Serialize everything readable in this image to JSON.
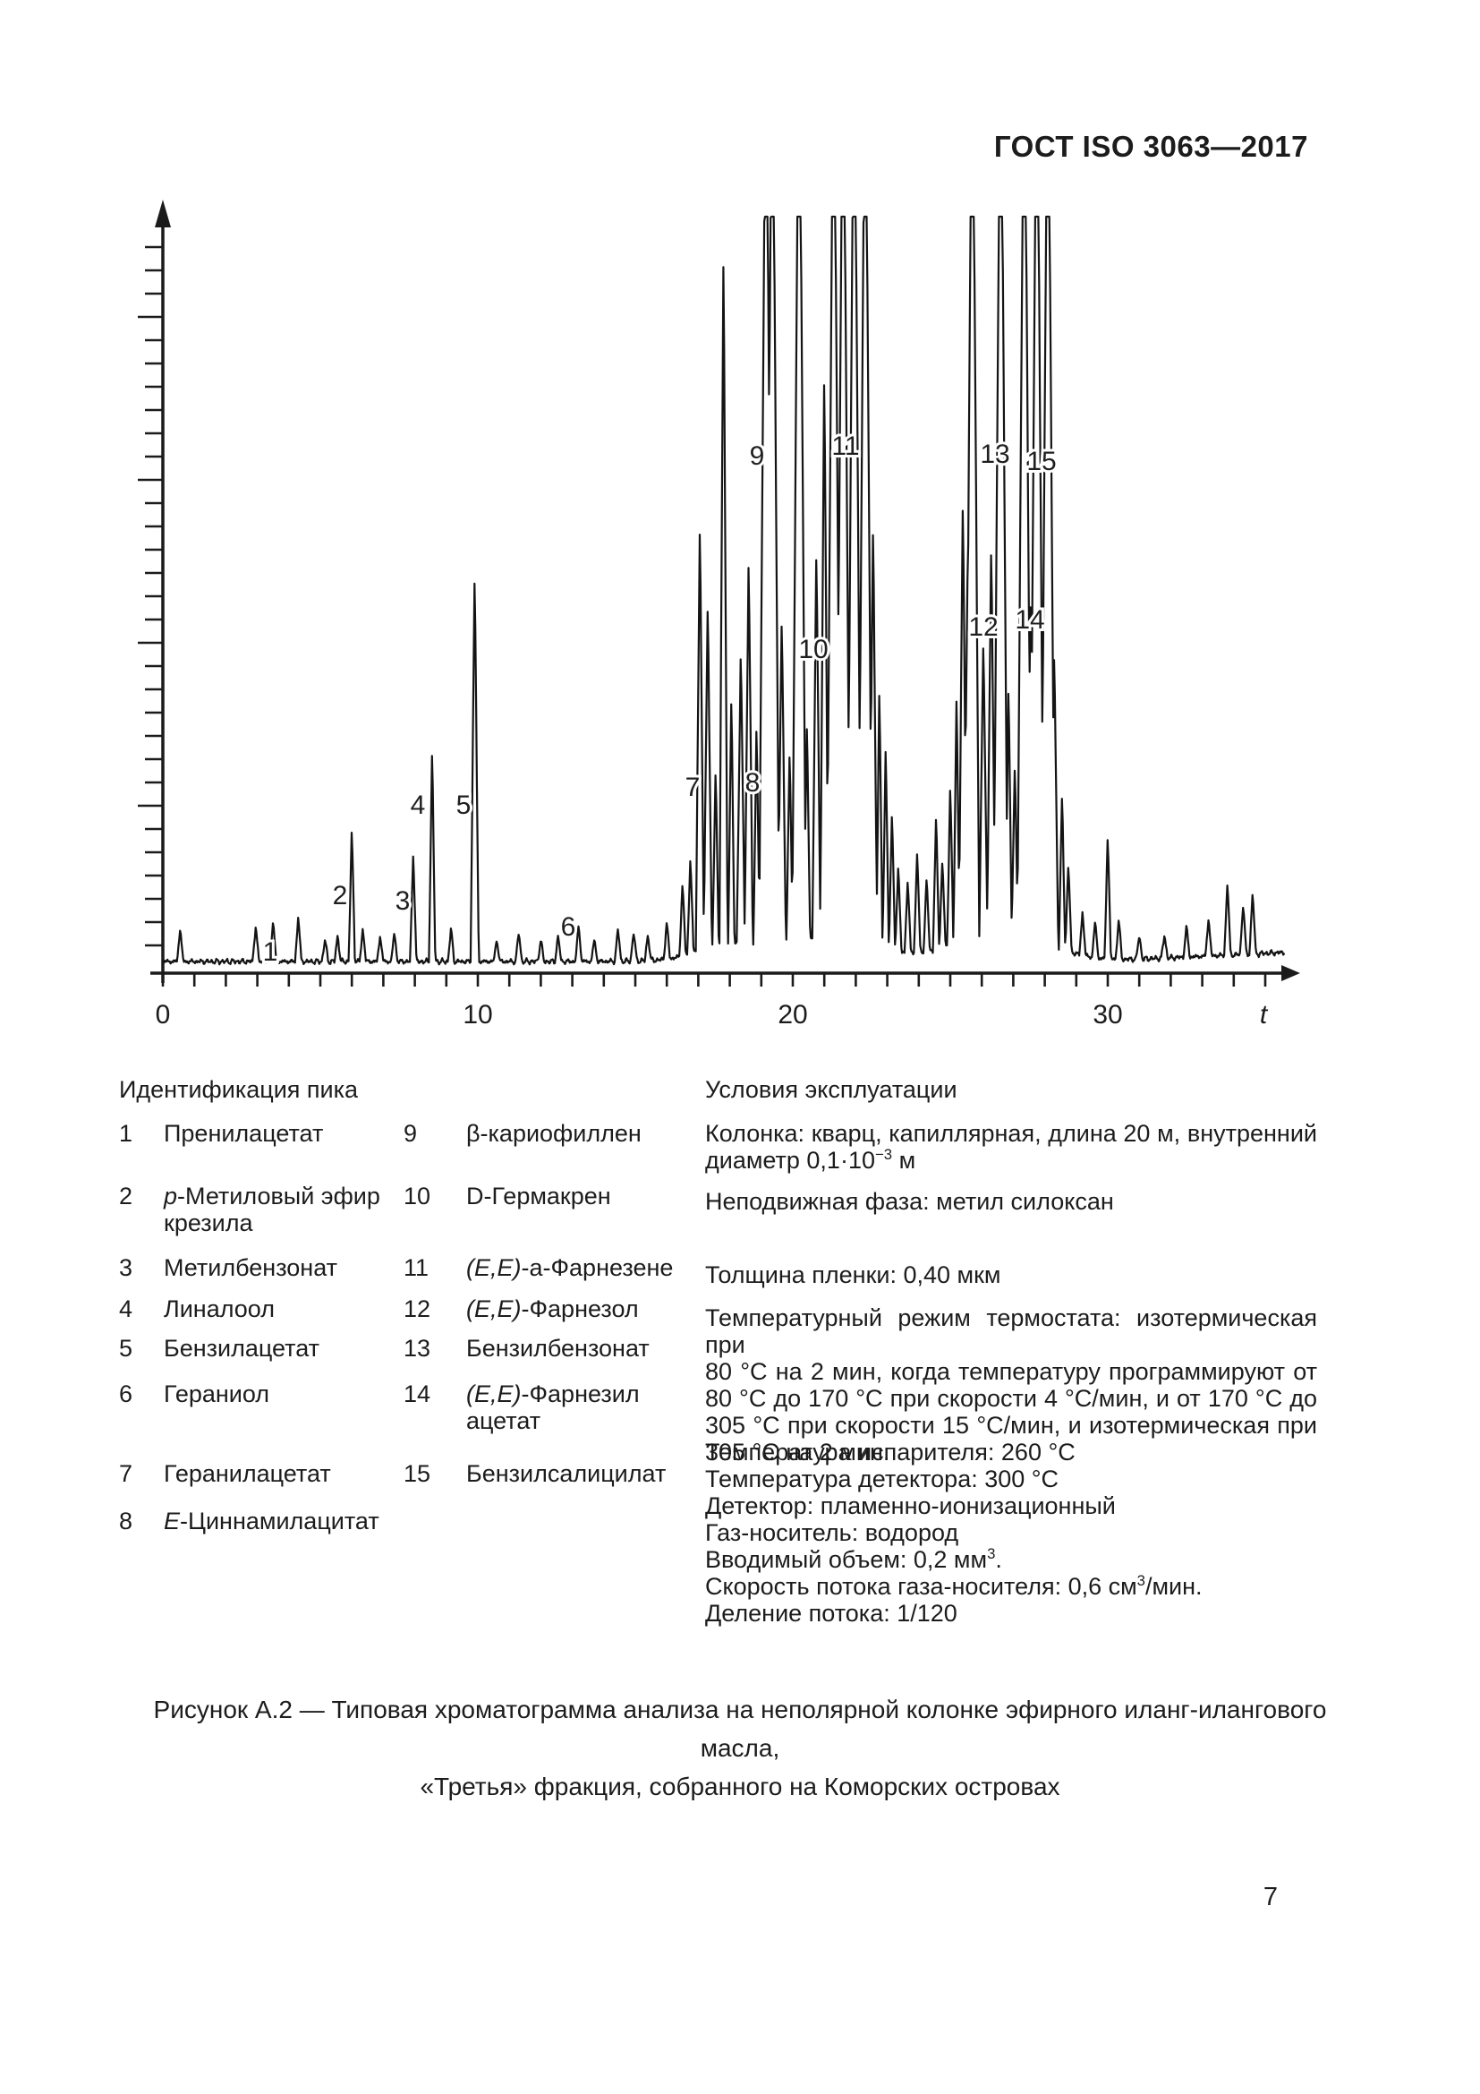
{
  "page": {
    "header": "ГОСТ ISO 3063—2017",
    "page_number": "7"
  },
  "chart_data": {
    "type": "line",
    "kind": "gas-chromatogram",
    "title": "",
    "xlabel": "t",
    "ylabel": "",
    "x_ticks": [
      0,
      10,
      20,
      30
    ],
    "x_minor_tick_step": 1,
    "x_range": [
      0,
      35.8
    ],
    "y_axis_ticks_count": 31,
    "grid": "off",
    "legend": "none",
    "trace_color": "#161616",
    "clipped_note": "peaks 9,11,12,13,14,15 and several unlabeled peaks saturate at plot top",
    "peaks": [
      {
        "t": 0.55,
        "h": 0.045
      },
      {
        "t": 2.95,
        "h": 0.05
      },
      {
        "t": 3.5,
        "h": 0.055,
        "label": "1"
      },
      {
        "t": 4.3,
        "h": 0.062
      },
      {
        "t": 5.15,
        "h": 0.03
      },
      {
        "t": 5.55,
        "h": 0.035
      },
      {
        "t": 6.0,
        "h": 0.18,
        "label": "2"
      },
      {
        "t": 6.35,
        "h": 0.045
      },
      {
        "t": 6.9,
        "h": 0.035
      },
      {
        "t": 7.35,
        "h": 0.04
      },
      {
        "t": 7.95,
        "h": 0.15,
        "label": "3"
      },
      {
        "t": 8.55,
        "h": 0.29,
        "label": "4"
      },
      {
        "t": 9.15,
        "h": 0.045
      },
      {
        "t": 9.9,
        "h": 0.53,
        "label": "5"
      },
      {
        "t": 10.6,
        "h": 0.03
      },
      {
        "t": 11.3,
        "h": 0.04
      },
      {
        "t": 12.0,
        "h": 0.03
      },
      {
        "t": 12.55,
        "h": 0.035
      },
      {
        "t": 13.2,
        "h": 0.05,
        "label": "6"
      },
      {
        "t": 13.7,
        "h": 0.03
      },
      {
        "t": 14.45,
        "h": 0.045
      },
      {
        "t": 14.95,
        "h": 0.04
      },
      {
        "t": 15.4,
        "h": 0.035
      },
      {
        "t": 16.0,
        "h": 0.05
      },
      {
        "t": 16.5,
        "h": 0.1
      },
      {
        "t": 16.75,
        "h": 0.13
      },
      {
        "t": 17.05,
        "h": 0.58,
        "label": "7"
      },
      {
        "t": 17.3,
        "h": 0.47
      },
      {
        "t": 17.55,
        "h": 0.24
      },
      {
        "t": 17.8,
        "h": 0.95
      },
      {
        "t": 18.05,
        "h": 0.34
      },
      {
        "t": 18.35,
        "h": 0.4,
        "label": "8"
      },
      {
        "t": 18.6,
        "h": 0.53
      },
      {
        "t": 18.85,
        "h": 0.3
      },
      {
        "t": 19.15,
        "h": 1.3,
        "clip": true,
        "label": "9"
      },
      {
        "t": 19.35,
        "h": 1.3,
        "clip": true
      },
      {
        "t": 19.65,
        "h": 0.44
      },
      {
        "t": 19.9,
        "h": 0.26
      },
      {
        "t": 20.2,
        "h": 1.3,
        "clip": true
      },
      {
        "t": 20.45,
        "h": 0.3
      },
      {
        "t": 20.75,
        "h": 0.53
      },
      {
        "t": 21.0,
        "h": 0.78,
        "label": "10"
      },
      {
        "t": 21.3,
        "h": 1.3,
        "clip": true
      },
      {
        "t": 21.6,
        "h": 1.3,
        "clip": true
      },
      {
        "t": 21.95,
        "h": 1.3,
        "clip": true,
        "label": "11"
      },
      {
        "t": 22.3,
        "h": 1.3,
        "clip": true
      },
      {
        "t": 22.55,
        "h": 0.58
      },
      {
        "t": 22.75,
        "h": 0.36
      },
      {
        "t": 22.95,
        "h": 0.28
      },
      {
        "t": 23.15,
        "h": 0.19
      },
      {
        "t": 23.35,
        "h": 0.12
      },
      {
        "t": 23.65,
        "h": 0.1
      },
      {
        "t": 23.95,
        "h": 0.14
      },
      {
        "t": 24.25,
        "h": 0.1
      },
      {
        "t": 24.55,
        "h": 0.18
      },
      {
        "t": 24.75,
        "h": 0.12
      },
      {
        "t": 25.0,
        "h": 0.22
      },
      {
        "t": 25.2,
        "h": 0.34
      },
      {
        "t": 25.4,
        "h": 0.6
      },
      {
        "t": 25.55,
        "h": 0.5
      },
      {
        "t": 25.7,
        "h": 1.3,
        "clip": true,
        "label": "12"
      },
      {
        "t": 26.05,
        "h": 0.4
      },
      {
        "t": 26.3,
        "h": 0.53
      },
      {
        "t": 26.6,
        "h": 1.3,
        "clip": true,
        "label": "13"
      },
      {
        "t": 26.85,
        "h": 0.34
      },
      {
        "t": 27.05,
        "h": 0.23
      },
      {
        "t": 27.35,
        "h": 1.3,
        "clip": true,
        "label": "14"
      },
      {
        "t": 27.55,
        "h": 0.46
      },
      {
        "t": 27.75,
        "h": 1.3,
        "clip": true
      },
      {
        "t": 28.1,
        "h": 1.3,
        "clip": true,
        "label": "15"
      },
      {
        "t": 28.3,
        "h": 0.4
      },
      {
        "t": 28.55,
        "h": 0.21
      },
      {
        "t": 28.75,
        "h": 0.12
      },
      {
        "t": 29.2,
        "h": 0.06
      },
      {
        "t": 29.6,
        "h": 0.05
      },
      {
        "t": 30.0,
        "h": 0.17
      },
      {
        "t": 30.35,
        "h": 0.055
      },
      {
        "t": 31.0,
        "h": 0.032
      },
      {
        "t": 31.8,
        "h": 0.032
      },
      {
        "t": 32.5,
        "h": 0.042
      },
      {
        "t": 33.2,
        "h": 0.052
      },
      {
        "t": 33.8,
        "h": 0.1
      },
      {
        "t": 34.3,
        "h": 0.07
      },
      {
        "t": 34.6,
        "h": 0.085
      }
    ],
    "peak_labels": [
      {
        "label": "1",
        "x": 302,
        "y": 1063
      },
      {
        "label": "2",
        "x": 380,
        "y": 1000
      },
      {
        "label": "3",
        "x": 450,
        "y": 1006
      },
      {
        "label": "4",
        "x": 467,
        "y": 899
      },
      {
        "label": "5",
        "x": 518,
        "y": 899
      },
      {
        "label": "6",
        "x": 635,
        "y": 1035
      },
      {
        "label": "7",
        "x": 774,
        "y": 879
      },
      {
        "label": "8",
        "x": 841,
        "y": 874
      },
      {
        "label": "9",
        "x": 846,
        "y": 509
      },
      {
        "label": "10",
        "x": 909,
        "y": 725
      },
      {
        "label": "11",
        "x": 945,
        "y": 498
      },
      {
        "label": "12",
        "x": 1099,
        "y": 700
      },
      {
        "label": "13",
        "x": 1112,
        "y": 507
      },
      {
        "label": "14",
        "x": 1151,
        "y": 692
      },
      {
        "label": "15",
        "x": 1164,
        "y": 515
      }
    ]
  },
  "identification": {
    "heading": "Идентификация пика",
    "rows": [
      {
        "n1": "1",
        "name1": [
          {
            "t": "Пренилацетат"
          }
        ],
        "n2": "9",
        "name2": [
          {
            "t": "β-кариофиллен"
          }
        ]
      },
      {
        "n1": "2",
        "name1": [
          {
            "i": "p"
          },
          {
            "t": "-Метиловый эфир крезила"
          }
        ],
        "n2": "10",
        "name2": [
          {
            "t": "D-Гермакрен"
          }
        ]
      },
      {
        "n1": "3",
        "name1": [
          {
            "t": "Метилбензонат"
          }
        ],
        "n2": "11",
        "name2": [
          {
            "i": "(E,E)"
          },
          {
            "t": "-а-Фарнезене"
          }
        ]
      },
      {
        "n1": "4",
        "name1": [
          {
            "t": "Линалоол"
          }
        ],
        "n2": "12",
        "name2": [
          {
            "i": "(E,E)"
          },
          {
            "t": "-Фарнезол"
          }
        ]
      },
      {
        "n1": "5",
        "name1": [
          {
            "t": "Бензилацетат"
          }
        ],
        "n2": "13",
        "name2": [
          {
            "t": "Бензилбензонат"
          }
        ]
      },
      {
        "n1": "6",
        "name1": [
          {
            "t": "Гераниол"
          }
        ],
        "n2": "14",
        "name2": [
          {
            "i": "(E,E)"
          },
          {
            "t": "-Фарнезил ацетат"
          }
        ]
      },
      {
        "n1": "7",
        "name1": [
          {
            "t": "Геранилацетат"
          }
        ],
        "n2": "15",
        "name2": [
          {
            "t": "Бензилсалицилат"
          }
        ]
      },
      {
        "n1": "8",
        "name1": [
          {
            "i": "E"
          },
          {
            "t": "-Циннамилацитат"
          }
        ],
        "n2": "",
        "name2": []
      }
    ]
  },
  "conditions": {
    "heading": "Условия эксплуатации",
    "blocks": [
      {
        "lines": [
          {
            "pre": "Колонка: кварц, капиллярная, длина 20 м, внутренний",
            "j": true
          },
          {
            "pre": "диаметр 0,1·10",
            "sup": "−3",
            "post": " м"
          }
        ]
      },
      {
        "lines": [
          {
            "pre": "Неподвижная фаза: метил силоксан"
          }
        ]
      },
      {
        "lines": [
          {
            "pre": "Толщина пленки: 0,40 мкм"
          }
        ]
      },
      {
        "lines": [
          {
            "pre": "Температурный режим термостата: изотермическая при",
            "j": true
          },
          {
            "pre": "80 °С на 2 мин, когда температуру программируют от",
            "j": true
          },
          {
            "pre": "80 °С до 170 °С при скорости 4 °С/мин, и от 170 °С до",
            "j": true
          },
          {
            "pre": "305 °С при скорости 15 °С/мин, и изотермическая при",
            "j": true
          },
          {
            "pre": "305 °С на 2 мин."
          }
        ]
      },
      {
        "lines": [
          {
            "pre": "Температура испарителя: 260 °С"
          },
          {
            "pre": "Температура детектора: 300 °С"
          },
          {
            "pre": "Детектор: пламенно-ионизационный"
          },
          {
            "pre": "Газ-носитель: водород"
          },
          {
            "pre": "Вводимый объем: 0,2 мм",
            "sup": "3",
            "post": "."
          },
          {
            "pre": "Скорость потока газа-носителя: 0,6 см",
            "sup": "3",
            "post": "/мин."
          },
          {
            "pre": "Деление потока: 1/120"
          }
        ]
      }
    ]
  },
  "caption": {
    "line1": "Рисунок А.2 — Типовая хроматограмма анализа на неполярной колонке эфирного иланг-илангового масла,",
    "line2": "«Третья» фракция, собранного на Коморских островах"
  }
}
